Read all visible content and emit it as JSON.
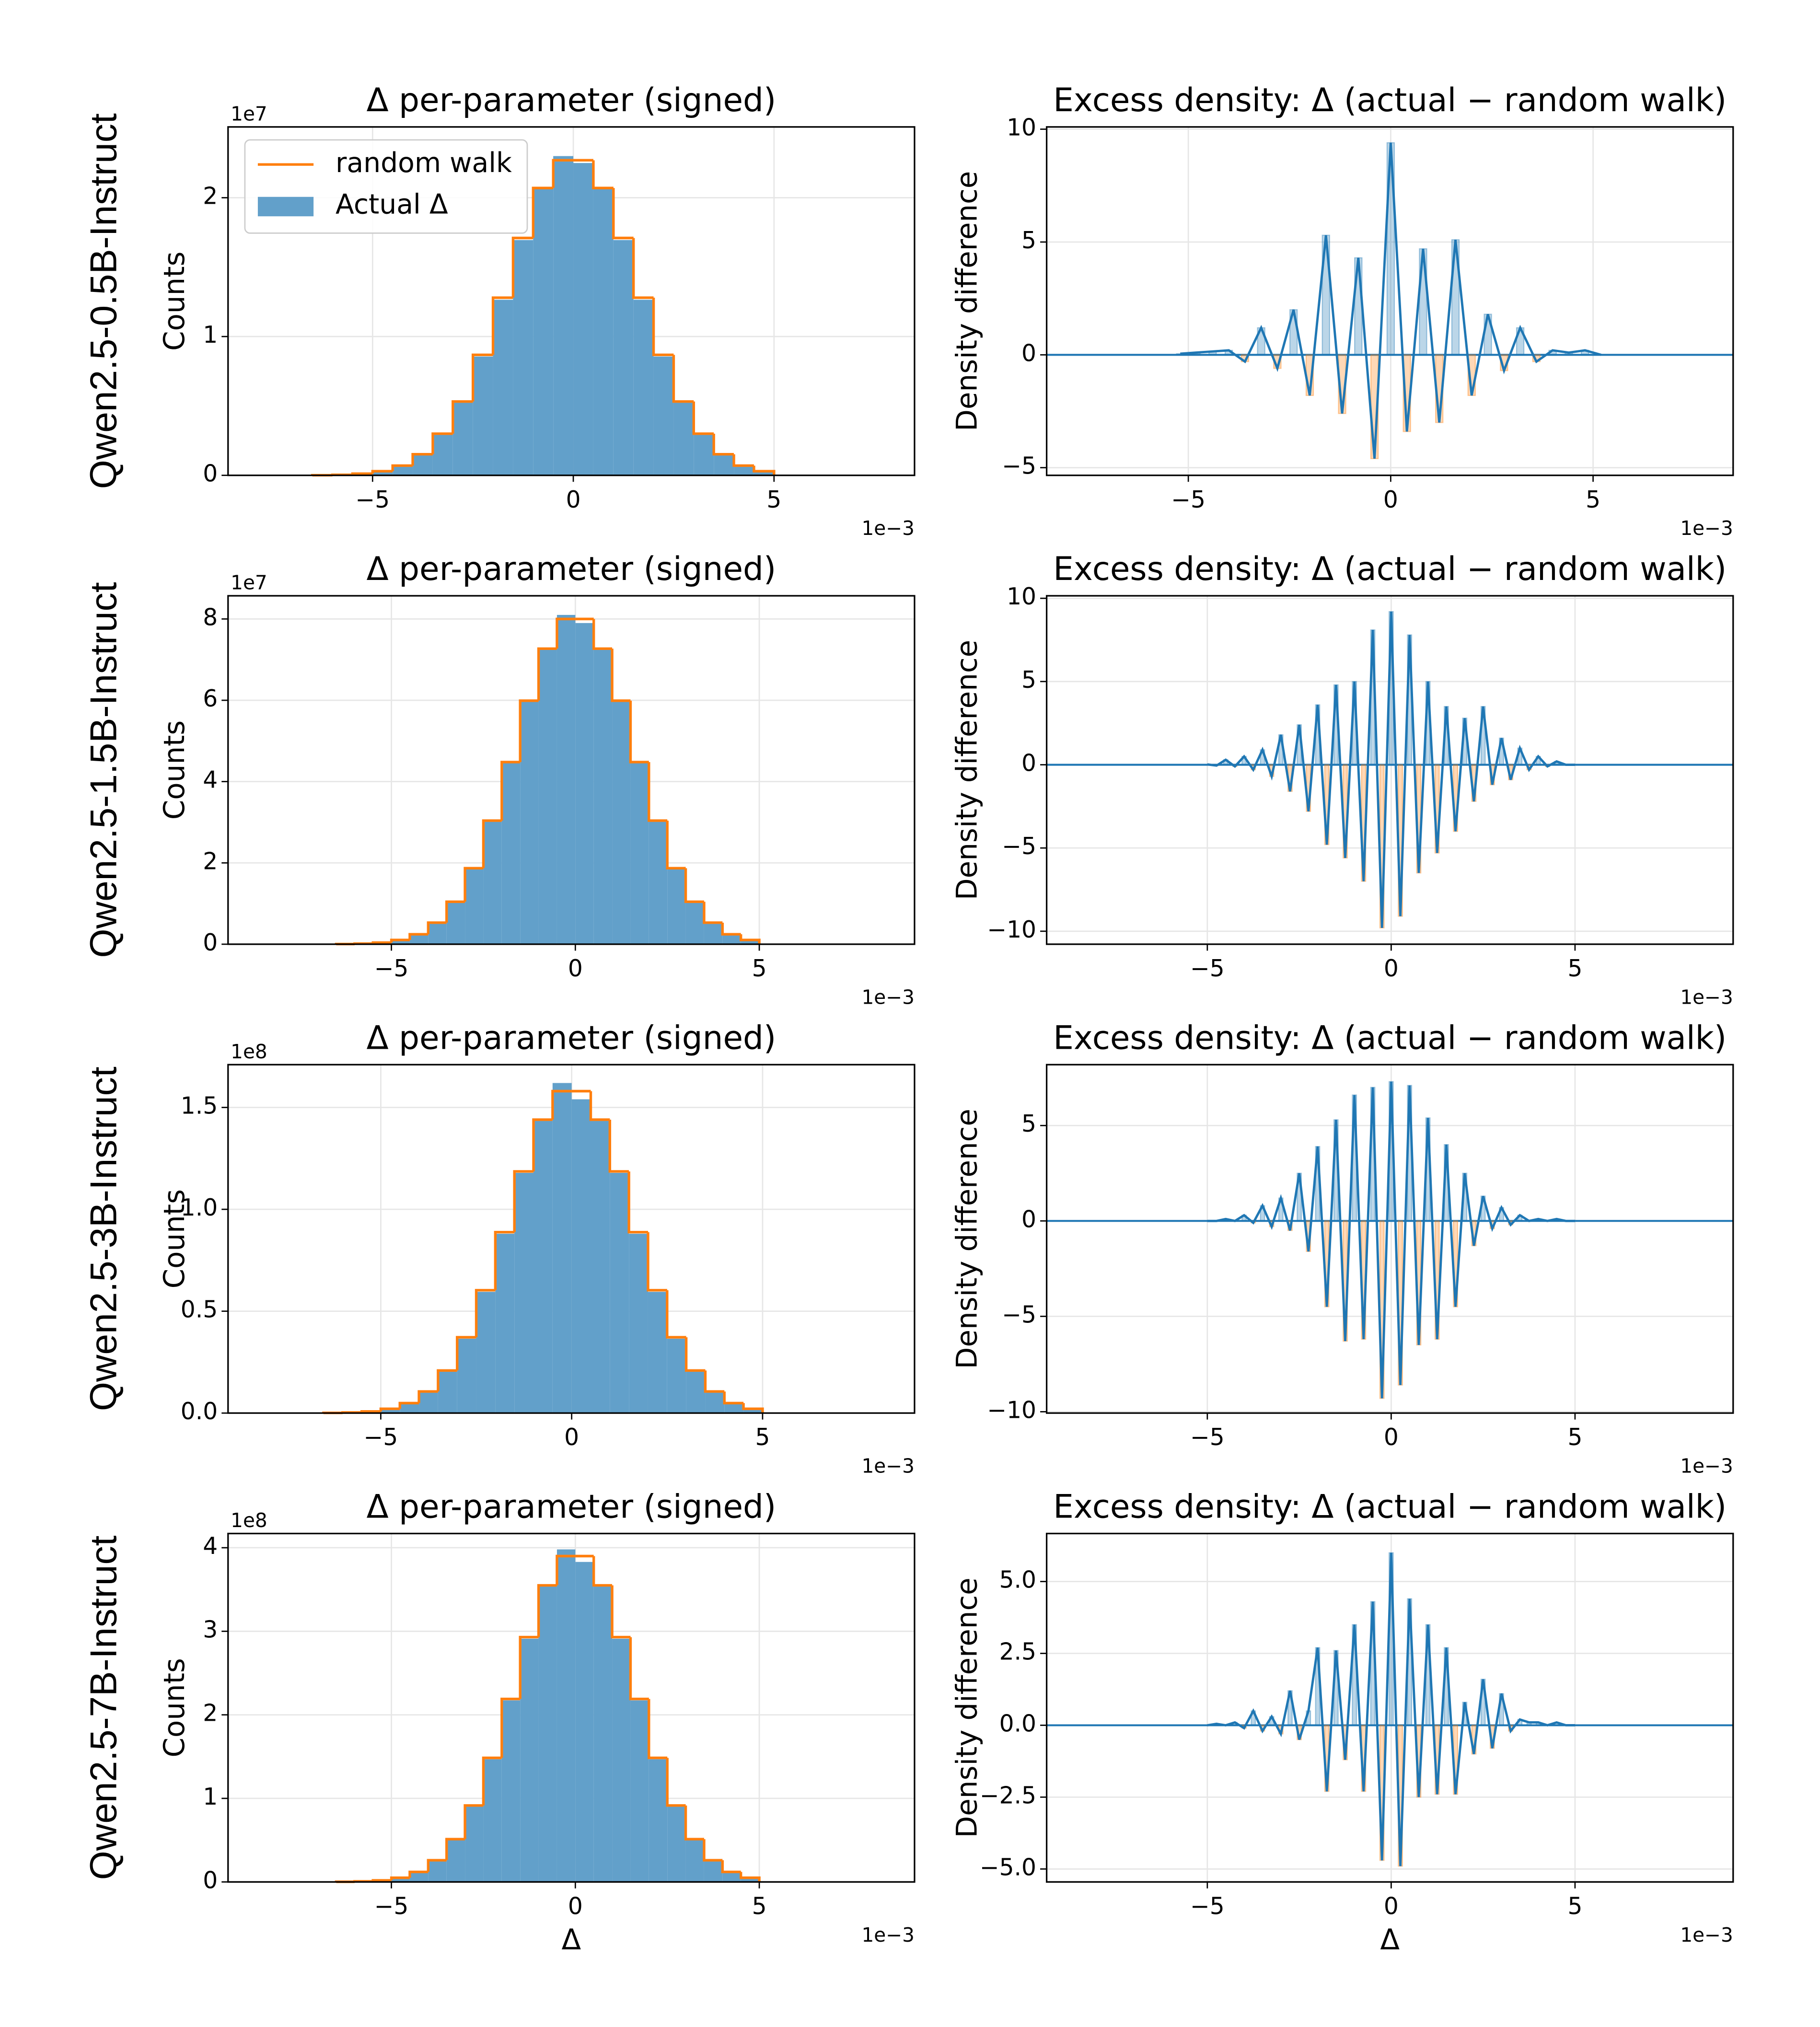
{
  "chart_data": [
    {
      "type": "histogram",
      "row_label": "Qwen2.5-0.5B-Instruct",
      "title": "Δ per-parameter (signed)",
      "y_label": "Counts",
      "x_offset": "1e−3",
      "y_offset": "1e7",
      "grid": true,
      "legend": "upper left",
      "bins": [
        -6.5,
        -6,
        -5.5,
        -5,
        -4.5,
        -4,
        -3.5,
        -3,
        -2.5,
        -2,
        -1.5,
        -1,
        -0.5,
        0,
        0.5,
        1,
        1.5,
        2,
        2.5,
        3,
        3.5,
        4,
        4.5,
        5
      ],
      "series": [
        {
          "name": "Actual Δ",
          "color": "#62a0ca",
          "style": "bar",
          "values": [
            0.001,
            0.004,
            0.011,
            0.028,
            0.067,
            0.147,
            0.292,
            0.524,
            0.856,
            1.265,
            1.695,
            2.061,
            2.3,
            2.25,
            2.061,
            1.695,
            1.265,
            0.856,
            0.524,
            0.292,
            0.147,
            0.067,
            0.028
          ]
        },
        {
          "name": "random walk",
          "color": "#ff7f0e",
          "style": "step",
          "values": [
            0.001,
            0.004,
            0.012,
            0.03,
            0.07,
            0.152,
            0.3,
            0.532,
            0.868,
            1.28,
            1.71,
            2.07,
            2.27,
            2.27,
            2.07,
            1.71,
            1.28,
            0.868,
            0.532,
            0.3,
            0.152,
            0.07,
            0.03
          ]
        }
      ],
      "xlim": [
        -8.6,
        8.5
      ],
      "xticks": [
        {
          "value": -5,
          "label": "−5"
        },
        0,
        5
      ],
      "ylim": [
        0,
        2.51
      ],
      "yticks": [
        0,
        1,
        2
      ]
    },
    {
      "type": "excess",
      "title": "Excess density: Δ (actual − random walk)",
      "y_label": "Density difference",
      "x_offset": "1e−3",
      "grid": true,
      "pos_color": "#1f77b4",
      "neg_color": "#ff7f0e",
      "x": [
        -5.2,
        -4.8,
        -4.4,
        -4,
        -3.6,
        -3.2,
        -2.8,
        -2.4,
        -2,
        -1.6,
        -1.2,
        -0.8,
        -0.4,
        0,
        0.4,
        0.8,
        1.2,
        1.6,
        2,
        2.4,
        2.8,
        3.2,
        3.6,
        4,
        4.4,
        4.8,
        5.2
      ],
      "values": [
        0.05,
        0.1,
        0.15,
        0.2,
        -0.3,
        1.2,
        -0.6,
        2.0,
        -1.8,
        5.3,
        -2.6,
        4.3,
        -4.6,
        9.4,
        -3.4,
        4.7,
        -3.0,
        5.1,
        -1.8,
        1.8,
        -0.7,
        1.2,
        -0.3,
        0.2,
        0.1,
        0.2,
        0
      ],
      "xlim": [
        -8.5,
        8.46
      ],
      "xticks": [
        {
          "value": -5,
          "label": "−5"
        },
        0,
        5
      ],
      "ylim": [
        -5.34,
        10.1
      ],
      "yticks": [
        {
          "value": -5,
          "label": "−5"
        },
        0,
        5,
        10
      ]
    },
    {
      "type": "histogram",
      "row_label": "Qwen2.5-1.5B-Instruct",
      "title": "Δ per-parameter (signed)",
      "y_label": "Counts",
      "x_offset": "1e−3",
      "y_offset": "1e7",
      "grid": true,
      "bins": [
        -6.5,
        -6,
        -5.5,
        -5,
        -4.5,
        -4,
        -3.5,
        -3,
        -2.5,
        -2,
        -1.5,
        -1,
        -0.5,
        0,
        0.5,
        1,
        1.5,
        2,
        2.5,
        3,
        3.5,
        4,
        4.5,
        5
      ],
      "series": [
        {
          "color": "#62a0ca",
          "style": "bar",
          "values": [
            0.004,
            0.013,
            0.037,
            0.099,
            0.237,
            0.518,
            1.029,
            1.847,
            3.013,
            4.455,
            5.97,
            7.258,
            8.1,
            7.9,
            7.258,
            5.97,
            4.455,
            3.013,
            1.847,
            1.029,
            0.518,
            0.237,
            0.099
          ]
        },
        {
          "color": "#ff7f0e",
          "style": "step",
          "values": [
            0.004,
            0.014,
            0.04,
            0.104,
            0.245,
            0.53,
            1.045,
            1.87,
            3.04,
            4.48,
            5.99,
            7.27,
            8.0,
            8.0,
            7.27,
            5.99,
            4.48,
            3.04,
            1.87,
            1.045,
            0.53,
            0.245,
            0.104
          ]
        }
      ],
      "xlim": [
        -9.44,
        9.22
      ],
      "xticks": [
        {
          "value": -5,
          "label": "−5"
        },
        0,
        5
      ],
      "ylim": [
        0,
        8.57
      ],
      "yticks": [
        0,
        2,
        4,
        6,
        8
      ]
    },
    {
      "type": "excess",
      "title": "Excess density: Δ (actual − random walk)",
      "y_label": "Density difference",
      "x_offset": "1e−3",
      "grid": true,
      "pos_color": "#1f77b4",
      "neg_color": "#ff7f0e",
      "x": [
        -5,
        -4.75,
        -4.5,
        -4.25,
        -4,
        -3.75,
        -3.5,
        -3.25,
        -3,
        -2.75,
        -2.5,
        -2.25,
        -2,
        -1.75,
        -1.5,
        -1.25,
        -1,
        -0.75,
        -0.5,
        -0.25,
        0,
        0.25,
        0.5,
        0.75,
        1,
        1.25,
        1.5,
        1.75,
        2,
        2.25,
        2.5,
        2.75,
        3,
        3.25,
        3.5,
        3.75,
        4,
        4.25,
        4.5,
        4.75,
        5
      ],
      "values": [
        0.02,
        -0.05,
        0.3,
        -0.1,
        0.5,
        -0.3,
        0.9,
        -0.7,
        1.8,
        -1.6,
        2.4,
        -2.8,
        3.6,
        -4.8,
        4.8,
        -5.6,
        5.0,
        -7.0,
        8.1,
        -9.8,
        9.2,
        -9.1,
        7.8,
        -6.5,
        5.0,
        -5.3,
        3.5,
        -4.0,
        2.8,
        -2.2,
        3.5,
        -1.2,
        1.6,
        -0.9,
        1.0,
        -0.3,
        0.5,
        -0.1,
        0.2,
        0,
        0
      ],
      "xlim": [
        -9.37,
        9.3
      ],
      "xticks": [
        {
          "value": -5,
          "label": "−5"
        },
        0,
        5
      ],
      "ylim": [
        -10.78,
        10.15
      ],
      "yticks": [
        {
          "value": -10,
          "label": "−10"
        },
        {
          "value": -5,
          "label": "−5"
        },
        0,
        5,
        10
      ]
    },
    {
      "type": "histogram",
      "row_label": "Qwen2.5-3B-Instruct",
      "title": "Δ per-parameter (signed)",
      "y_label": "Counts",
      "x_offset": "1e−3",
      "y_offset": "1e8",
      "grid": true,
      "bins": [
        -6.5,
        -6,
        -5.5,
        -5,
        -4.5,
        -4,
        -3.5,
        -3,
        -2.5,
        -2,
        -1.5,
        -1,
        -0.5,
        0,
        0.5,
        1,
        1.5,
        2,
        2.5,
        3,
        3.5,
        4,
        4.5,
        5
      ],
      "series": [
        {
          "color": "#62a0ca",
          "style": "bar",
          "values": [
            0.001,
            0.003,
            0.007,
            0.02,
            0.047,
            0.102,
            0.203,
            0.365,
            0.595,
            0.88,
            1.179,
            1.434,
            1.62,
            1.54,
            1.434,
            1.179,
            0.88,
            0.595,
            0.365,
            0.203,
            0.102,
            0.047,
            0.02
          ]
        },
        {
          "color": "#ff7f0e",
          "style": "step",
          "values": [
            0.001,
            0.003,
            0.008,
            0.021,
            0.049,
            0.106,
            0.209,
            0.372,
            0.603,
            0.888,
            1.186,
            1.44,
            1.58,
            1.58,
            1.44,
            1.186,
            0.888,
            0.603,
            0.372,
            0.209,
            0.106,
            0.049,
            0.021
          ]
        }
      ],
      "xlim": [
        -9.0,
        8.98
      ],
      "xticks": [
        {
          "value": -5,
          "label": "−5"
        },
        0,
        5
      ],
      "ylim": [
        0,
        1.71
      ],
      "yticks": [
        {
          "value": 0,
          "label": "0.0"
        },
        0.5,
        {
          "value": 1,
          "label": "1.0"
        },
        1.5
      ]
    },
    {
      "type": "excess",
      "title": "Excess density: Δ (actual − random walk)",
      "y_label": "Density difference",
      "x_offset": "1e−3",
      "grid": true,
      "pos_color": "#1f77b4",
      "neg_color": "#ff7f0e",
      "x": [
        -5,
        -4.75,
        -4.5,
        -4.25,
        -4,
        -3.75,
        -3.5,
        -3.25,
        -3,
        -2.75,
        -2.5,
        -2.25,
        -2,
        -1.75,
        -1.5,
        -1.25,
        -1,
        -0.75,
        -0.5,
        -0.25,
        0,
        0.25,
        0.5,
        0.75,
        1,
        1.25,
        1.5,
        1.75,
        2,
        2.25,
        2.5,
        2.75,
        3,
        3.25,
        3.5,
        3.75,
        4,
        4.25,
        4.5,
        4.75,
        5
      ],
      "values": [
        0,
        0,
        0.1,
        0,
        0.3,
        -0.1,
        0.8,
        -0.3,
        1.2,
        -0.5,
        2.5,
        -1.6,
        3.9,
        -4.5,
        5.3,
        -6.3,
        6.6,
        -6.2,
        7.0,
        -9.3,
        7.3,
        -8.6,
        7.1,
        -6.5,
        5.4,
        -6.2,
        4.0,
        -4.5,
        2.5,
        -1.3,
        1.3,
        -0.4,
        0.7,
        -0.2,
        0.3,
        0,
        0.1,
        0,
        0.1,
        0,
        0
      ],
      "xlim": [
        -9.37,
        9.3
      ],
      "xticks": [
        {
          "value": -5,
          "label": "−5"
        },
        0,
        5
      ],
      "ylim": [
        -10.07,
        8.19
      ],
      "yticks": [
        {
          "value": -10,
          "label": "−10"
        },
        {
          "value": -5,
          "label": "−5"
        },
        0,
        5
      ]
    },
    {
      "type": "histogram",
      "row_label": "Qwen2.5-7B-Instruct",
      "title": "Δ per-parameter (signed)",
      "y_label": "Counts",
      "x_label": "Δ",
      "x_offset": "1e−3",
      "y_offset": "1e8",
      "grid": true,
      "bins": [
        -6.5,
        -6,
        -5.5,
        -5,
        -4.5,
        -4,
        -3.5,
        -3,
        -2.5,
        -2,
        -1.5,
        -1,
        -0.5,
        0,
        0.5,
        1,
        1.5,
        2,
        2.5,
        3,
        3.5,
        4,
        4.5,
        5
      ],
      "series": [
        {
          "color": "#62a0ca",
          "style": "bar",
          "values": [
            0.002,
            0.006,
            0.018,
            0.048,
            0.116,
            0.253,
            0.502,
            0.901,
            1.469,
            2.173,
            2.911,
            3.539,
            3.98,
            3.83,
            3.539,
            2.911,
            2.173,
            1.469,
            0.901,
            0.502,
            0.253,
            0.116,
            0.048
          ]
        },
        {
          "color": "#ff7f0e",
          "style": "step",
          "values": [
            0.002,
            0.007,
            0.019,
            0.05,
            0.12,
            0.26,
            0.512,
            0.915,
            1.485,
            2.19,
            2.93,
            3.55,
            3.9,
            3.9,
            3.55,
            2.93,
            2.19,
            1.485,
            0.915,
            0.512,
            0.26,
            0.12,
            0.05
          ]
        }
      ],
      "xlim": [
        -9.44,
        9.22
      ],
      "xticks": [
        {
          "value": -5,
          "label": "−5"
        },
        0,
        5
      ],
      "ylim": [
        0,
        4.17
      ],
      "yticks": [
        0,
        1,
        2,
        3,
        4
      ]
    },
    {
      "type": "excess",
      "title": "Excess density: Δ (actual − random walk)",
      "y_label": "Density difference",
      "x_label": "Δ",
      "x_offset": "1e−3",
      "grid": true,
      "pos_color": "#1f77b4",
      "neg_color": "#ff7f0e",
      "x": [
        -5,
        -4.75,
        -4.5,
        -4.25,
        -4,
        -3.75,
        -3.5,
        -3.25,
        -3,
        -2.75,
        -2.5,
        -2.25,
        -2,
        -1.75,
        -1.5,
        -1.25,
        -1,
        -0.75,
        -0.5,
        -0.25,
        0,
        0.25,
        0.5,
        0.75,
        1,
        1.25,
        1.5,
        1.75,
        2,
        2.25,
        2.5,
        2.75,
        3,
        3.25,
        3.5,
        3.75,
        4,
        4.25,
        4.5,
        4.75,
        5
      ],
      "values": [
        0,
        0.05,
        0,
        0.1,
        -0.1,
        0.5,
        -0.2,
        0.3,
        -0.3,
        1.2,
        -0.5,
        0.5,
        2.7,
        -2.3,
        2.6,
        -1.2,
        3.5,
        -2.3,
        4.3,
        -4.7,
        6.0,
        -4.9,
        4.4,
        -2.5,
        3.5,
        -2.4,
        2.7,
        -2.4,
        0.8,
        -1.0,
        1.6,
        -0.8,
        1.1,
        -0.2,
        0.2,
        0.1,
        0.1,
        0,
        0.1,
        0,
        0
      ],
      "xlim": [
        -9.37,
        9.3
      ],
      "xticks": [
        {
          "value": -5,
          "label": "−5"
        },
        0,
        5
      ],
      "ylim": [
        -5.45,
        6.67
      ],
      "yticks": [
        {
          "value": -5,
          "label": "−5.0"
        },
        {
          "value": -2.5,
          "label": "−2.5"
        },
        {
          "value": 0,
          "label": "0.0"
        },
        {
          "value": 2.5,
          "label": "2.5"
        },
        {
          "value": 5,
          "label": "5.0"
        }
      ]
    }
  ]
}
